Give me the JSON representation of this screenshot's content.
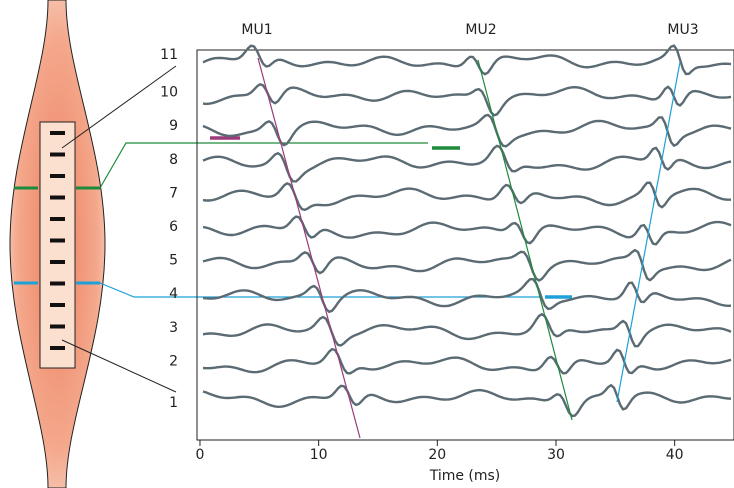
{
  "labels": {
    "mu": [
      "MU1",
      "MU2",
      "MU3"
    ],
    "channels": [
      "1",
      "2",
      "3",
      "4",
      "5",
      "6",
      "7",
      "8",
      "9",
      "10",
      "11"
    ]
  },
  "x_axis": {
    "label": "Time (ms)",
    "xlim": [
      -0.25,
      45
    ],
    "xticks": [
      0,
      10,
      20,
      30,
      40
    ]
  }
}
